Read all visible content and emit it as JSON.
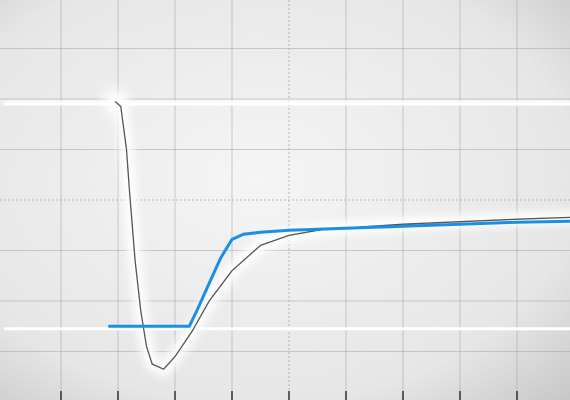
{
  "chart_data": {
    "type": "line",
    "title": "",
    "xlabel": "",
    "ylabel": "",
    "grid": true,
    "legend": "none",
    "xlim": [
      0,
      10
    ],
    "ylim": [
      0,
      8
    ],
    "colors": {
      "screen_light": "#f4f4f4",
      "screen_dark": "#c9c9c9",
      "grid": "#a9a9a9",
      "trace_glow": "#ffffff",
      "measured_line": "#555555",
      "model_line": "#1a8fe6"
    },
    "series": [
      {
        "name": "",
        "role": "upper-baseline-trace",
        "x": [
          0,
          1.84,
          1.95,
          2.05,
          10
        ],
        "y": [
          5.9,
          5.9,
          5.95,
          5.9,
          5.9
        ]
      },
      {
        "name": "",
        "role": "lower-baseline-trace",
        "x": [
          0,
          10
        ],
        "y": [
          1.45,
          1.45
        ]
      },
      {
        "name": "",
        "role": "measured-curve",
        "x": [
          1.95,
          2.05,
          2.15,
          2.2,
          2.3,
          2.4,
          2.5,
          2.6,
          2.8,
          3.0,
          3.3,
          3.6,
          4.0,
          4.5,
          5.0,
          5.5,
          6.0,
          7.0,
          8.0,
          9.0,
          10.0
        ],
        "y": [
          5.95,
          5.85,
          5.0,
          4.2,
          2.8,
          1.8,
          1.1,
          0.75,
          0.65,
          0.9,
          1.4,
          2.0,
          2.6,
          3.1,
          3.3,
          3.4,
          3.45,
          3.52,
          3.57,
          3.62,
          3.66
        ]
      },
      {
        "name": "",
        "role": "model-curve",
        "x": [
          1.85,
          3.25,
          3.4,
          3.6,
          3.8,
          4.0,
          4.2,
          4.5,
          5.0,
          6.0,
          7.0,
          8.0,
          9.0,
          10.0
        ],
        "y": [
          1.5,
          1.5,
          1.85,
          2.35,
          2.85,
          3.22,
          3.32,
          3.36,
          3.4,
          3.44,
          3.48,
          3.52,
          3.56,
          3.58
        ]
      }
    ]
  }
}
